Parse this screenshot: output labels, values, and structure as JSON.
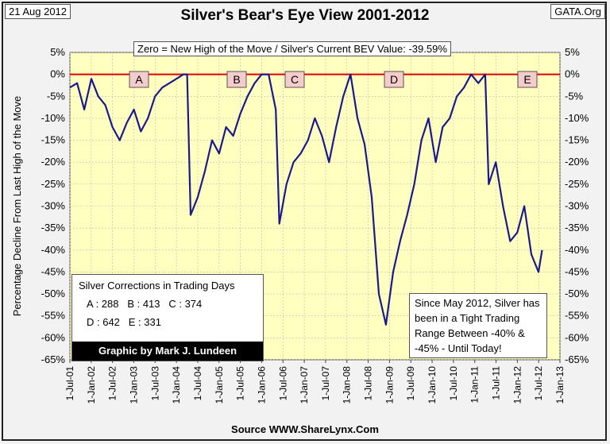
{
  "date_label": "21 Aug 2012",
  "source_label": "GATA.Org",
  "title": "Silver's Bear's Eye View 2001-2012",
  "subtitle_box": "Zero = New High of the Move / Silver's Current BEV Value: -39.59%",
  "ylabel": "Percentage Decline From Last High of the Move",
  "footer": "Source WWW.ShareLynx.Com",
  "corrections_box": {
    "title": "Silver Corrections in Trading Days",
    "line1": "A : 288   B : 413   C : 374",
    "line2": "D : 642   E : 331",
    "credit": "Graphic by Mark J. Lundeen"
  },
  "note_box": {
    "line1": "Since May 2012, Silver has",
    "line2": "been in a Tight Trading",
    "line3": "Range Between -40% &",
    "line4": "-45% - Until Today!"
  },
  "colors": {
    "plot_bg": "#ffffc0",
    "series": "#1a1a8c",
    "zero_line": "#e00000",
    "credit_bg": "#000000"
  },
  "chart_data": {
    "type": "line",
    "ylim": [
      -65,
      5
    ],
    "y_ticks": [
      "5%",
      "0%",
      "-5%",
      "-10%",
      "-15%",
      "-20%",
      "-25%",
      "-30%",
      "-35%",
      "-40%",
      "-45%",
      "-50%",
      "-55%",
      "-60%",
      "-65%"
    ],
    "x_ticks": [
      "1-Jul-01",
      "1-Jan-02",
      "1-Jul-02",
      "1-Jan-03",
      "1-Jul-03",
      "1-Jan-04",
      "1-Jul-04",
      "1-Jan-05",
      "1-Jul-05",
      "1-Jan-06",
      "1-Jul-06",
      "1-Jan-07",
      "1-Jul-07",
      "1-Jan-08",
      "1-Jul-08",
      "1-Jan-09",
      "1-Jul-09",
      "1-Jan-10",
      "1-Jul-10",
      "1-Jan-11",
      "1-Jul-11",
      "1-Jan-12",
      "1-Jul-12",
      "1-Jan-13"
    ],
    "grid": true,
    "series": [
      {
        "x": [
          "2001-07",
          "2001-09",
          "2001-11",
          "2002-01",
          "2002-03",
          "2002-05",
          "2002-07",
          "2002-09",
          "2002-11",
          "2003-01",
          "2003-03",
          "2003-05",
          "2003-07",
          "2003-09",
          "2003-11",
          "2004-01",
          "2004-03",
          "2004-04",
          "2004-05",
          "2004-07",
          "2004-09",
          "2004-11",
          "2005-01",
          "2005-03",
          "2005-05",
          "2005-07",
          "2005-09",
          "2005-11",
          "2006-01",
          "2006-03",
          "2006-05",
          "2006-06",
          "2006-08",
          "2006-10",
          "2006-12",
          "2007-02",
          "2007-04",
          "2007-06",
          "2007-08",
          "2007-10",
          "2007-12",
          "2008-02",
          "2008-04",
          "2008-06",
          "2008-08",
          "2008-10",
          "2008-12",
          "2009-02",
          "2009-04",
          "2009-06",
          "2009-08",
          "2009-10",
          "2009-12",
          "2010-02",
          "2010-04",
          "2010-06",
          "2010-08",
          "2010-10",
          "2010-12",
          "2011-02",
          "2011-04",
          "2011-05",
          "2011-07",
          "2011-09",
          "2011-11",
          "2012-01",
          "2012-03",
          "2012-05",
          "2012-07",
          "2012-08"
        ],
        "values": [
          -3,
          -2,
          -8,
          -1,
          -5,
          -7,
          -12,
          -15,
          -11,
          -8,
          -13,
          -10,
          -5,
          -3,
          -2,
          -1,
          0,
          0,
          -32,
          -28,
          -22,
          -15,
          -18,
          -12,
          -14,
          -9,
          -5,
          -2,
          0,
          0,
          -8,
          -34,
          -25,
          -20,
          -18,
          -15,
          -10,
          -14,
          -20,
          -12,
          -5,
          0,
          -10,
          -16,
          -28,
          -50,
          -57,
          -45,
          -38,
          -32,
          -25,
          -15,
          -10,
          -20,
          -12,
          -10,
          -5,
          -3,
          0,
          -2,
          0,
          -25,
          -20,
          -30,
          -38,
          -36,
          -30,
          -41,
          -45,
          -40
        ]
      }
    ],
    "annotations": [
      "A",
      "B",
      "C",
      "D",
      "E"
    ]
  }
}
